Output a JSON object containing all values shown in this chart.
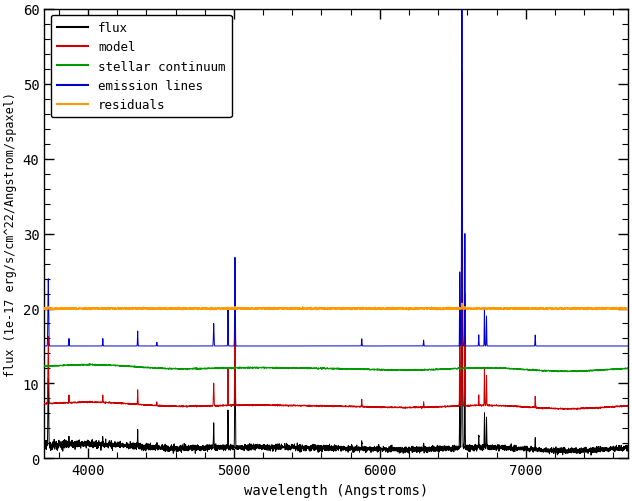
{
  "xlabel": "wavelength (Angstroms)",
  "ylabel": "flux (1e-17 erg/s/cm^22/Angstrom/spaxel)",
  "xlim": [
    3700,
    7700
  ],
  "ylim": [
    0,
    60
  ],
  "yticks": [
    0,
    10,
    20,
    30,
    40,
    50,
    60
  ],
  "xticks": [
    4000,
    5000,
    6000,
    7000
  ],
  "flux_color": "#000000",
  "model_color": "#cc0000",
  "stellar_color": "#009900",
  "emission_color": "#0000cc",
  "residuals_color": "#ff9900",
  "flux_base": 1.5,
  "model_base": 7.0,
  "stellar_base": 12.0,
  "emission_base": 15.0,
  "residuals_base": 20.0,
  "legend_labels": [
    "flux",
    "model",
    "stellar continuum",
    "emission lines",
    "residuals"
  ],
  "legend_colors": [
    "#000000",
    "#cc0000",
    "#009900",
    "#0000cc",
    "#ff9900"
  ],
  "font_family": "monospace",
  "background_color": "#ffffff",
  "linewidth": 0.7,
  "emission_lines": [
    3727,
    3869,
    4101,
    4340,
    4471,
    4861,
    4959,
    5007,
    5876,
    6300,
    6548,
    6563,
    6583,
    6678,
    6717,
    6731,
    7065
  ],
  "emission_amps": [
    9.0,
    1.0,
    1.0,
    2.0,
    0.5,
    3.0,
    5.0,
    12.0,
    1.0,
    0.8,
    10.0,
    45.0,
    15.0,
    1.5,
    5.0,
    4.0,
    1.5
  ],
  "emission_widths": [
    2.5,
    1.5,
    1.5,
    1.5,
    1.5,
    2.0,
    1.5,
    2.0,
    1.5,
    1.5,
    1.5,
    2.5,
    1.5,
    1.5,
    1.5,
    1.5,
    1.5
  ]
}
